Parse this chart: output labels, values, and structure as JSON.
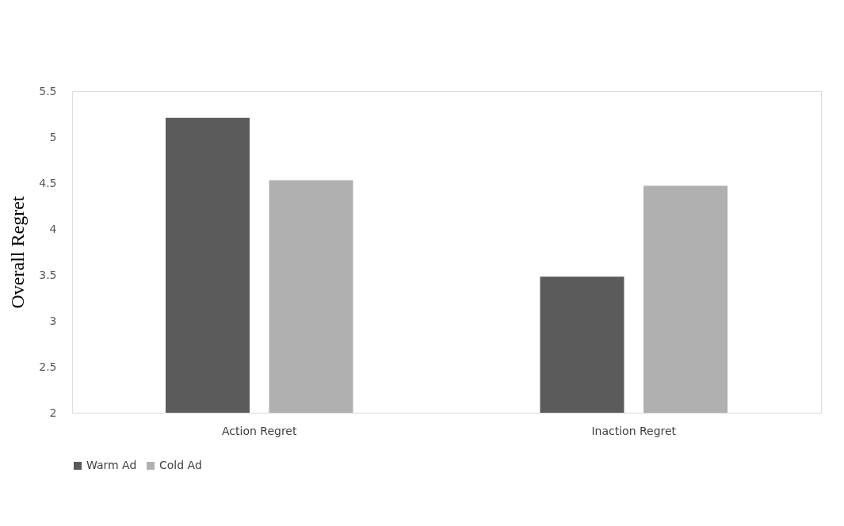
{
  "chart_data": {
    "type": "bar",
    "ylabel": "Overall Regret",
    "categories": [
      "Action Regret",
      "Inaction Regret"
    ],
    "series": [
      {
        "name": "Warm Ad",
        "color": "#5b5b5b",
        "values": [
          5.21,
          3.48
        ]
      },
      {
        "name": "Cold Ad",
        "color": "#b0b0b0",
        "values": [
          4.53,
          4.47
        ]
      }
    ],
    "ylim": [
      2,
      5.5
    ],
    "yticks": [
      2,
      2.5,
      3,
      3.5,
      4,
      4.5,
      5,
      5.5
    ],
    "grid": false,
    "legend": "bottom"
  }
}
